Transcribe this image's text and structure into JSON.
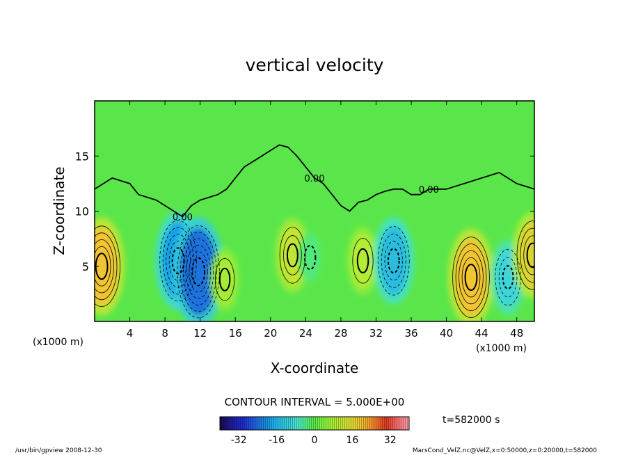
{
  "chart_data": {
    "type": "heatmap",
    "title": "vertical velocity",
    "xlabel": "X-coordinate",
    "ylabel": "Z-coordinate",
    "x_unit_left": "(x1000 m)",
    "x_unit_right": "(x1000 m)",
    "xlim": [
      0,
      50
    ],
    "ylim": [
      0,
      20
    ],
    "x_ticks": [
      4,
      8,
      12,
      16,
      20,
      24,
      28,
      32,
      36,
      40,
      44,
      48
    ],
    "y_ticks": [
      5,
      10,
      15
    ],
    "contour_interval_label": "CONTOUR INTERVAL = 5.000E+00",
    "contour_value_label": "0.00",
    "contour_zero_lines": [
      {
        "x": [
          0,
          2,
          4,
          5,
          7,
          9,
          10,
          11,
          12,
          14,
          15,
          16,
          17,
          18,
          19,
          20,
          21,
          22,
          23,
          24,
          25,
          26,
          27,
          28,
          29,
          30,
          31,
          32,
          33,
          34,
          35,
          36,
          37,
          38,
          40,
          42,
          44,
          46,
          48,
          50
        ],
        "z": [
          12,
          13,
          12.5,
          11.5,
          11,
          10,
          9.5,
          10.5,
          11,
          11.5,
          12,
          13,
          14,
          14.5,
          15,
          15.5,
          16,
          15.8,
          15,
          14,
          13,
          12.5,
          11.5,
          10.5,
          10,
          10.8,
          11,
          11.5,
          11.8,
          12,
          12,
          11.5,
          11.5,
          12,
          12,
          12.5,
          13,
          13.5,
          12.5,
          12
        ]
      }
    ],
    "extrema": [
      {
        "x": 0.8,
        "z": 5.0,
        "value": 25,
        "sign": "positive"
      },
      {
        "x": 9.5,
        "z": 5.5,
        "value": -25,
        "sign": "negative"
      },
      {
        "x": 11.8,
        "z": 4.5,
        "value": -30,
        "sign": "negative"
      },
      {
        "x": 14.8,
        "z": 3.8,
        "value": 10,
        "sign": "positive"
      },
      {
        "x": 22.5,
        "z": 6.0,
        "value": 15,
        "sign": "positive"
      },
      {
        "x": 24.5,
        "z": 5.8,
        "value": -5,
        "sign": "negative"
      },
      {
        "x": 30.5,
        "z": 5.5,
        "value": 12,
        "sign": "positive"
      },
      {
        "x": 34.0,
        "z": 5.5,
        "value": -20,
        "sign": "negative"
      },
      {
        "x": 42.8,
        "z": 4.0,
        "value": 25,
        "sign": "positive"
      },
      {
        "x": 47.0,
        "z": 4.0,
        "value": -15,
        "sign": "negative"
      },
      {
        "x": 49.8,
        "z": 6.0,
        "value": 20,
        "sign": "positive"
      }
    ],
    "colorbar": {
      "ticks": [
        -32,
        -16,
        0,
        16,
        32
      ],
      "tick_labels": [
        "-32",
        "-16",
        "0",
        "16",
        "32"
      ],
      "range": [
        -40,
        40
      ],
      "colors": [
        "#1a0a55",
        "#1f2bd0",
        "#19a3e6",
        "#45e2d4",
        "#59ec43",
        "#b8ec34",
        "#f0c430",
        "#e33a22",
        "#ff9fb4"
      ]
    },
    "time_label": "t=582000 s",
    "footer_left": "/usr/bin/gpview  2008-12-30",
    "footer_right": "MarsCond_VelZ.nc@VelZ,x=0:50000,z=0:20000,t=582000"
  }
}
